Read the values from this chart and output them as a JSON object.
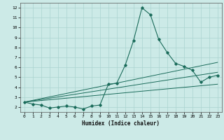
{
  "title": "",
  "xlabel": "Humidex (Indice chaleur)",
  "background_color": "#cceae7",
  "grid_color": "#aad4d0",
  "line_color": "#1a6b5a",
  "xlim": [
    -0.5,
    23.5
  ],
  "ylim": [
    1.5,
    12.5
  ],
  "xticks": [
    0,
    1,
    2,
    3,
    4,
    5,
    6,
    7,
    8,
    9,
    10,
    11,
    12,
    13,
    14,
    15,
    16,
    17,
    18,
    19,
    20,
    21,
    22,
    23
  ],
  "yticks": [
    2,
    3,
    4,
    5,
    6,
    7,
    8,
    9,
    10,
    11,
    12
  ],
  "main_x": [
    0,
    1,
    2,
    3,
    4,
    5,
    6,
    7,
    8,
    9,
    10,
    11,
    12,
    13,
    14,
    15,
    16,
    17,
    18,
    19,
    20,
    21,
    22,
    23
  ],
  "main_y": [
    2.5,
    2.3,
    2.2,
    1.9,
    2.0,
    2.1,
    2.0,
    1.8,
    2.1,
    2.2,
    4.3,
    4.4,
    6.2,
    8.7,
    12.0,
    11.3,
    8.8,
    7.5,
    6.4,
    6.1,
    5.7,
    4.5,
    5.0,
    5.2
  ],
  "trend_lines": [
    {
      "x": [
        0,
        23
      ],
      "y": [
        2.5,
        6.5
      ]
    },
    {
      "x": [
        0,
        23
      ],
      "y": [
        2.5,
        5.5
      ]
    },
    {
      "x": [
        0,
        23
      ],
      "y": [
        2.5,
        4.3
      ]
    }
  ]
}
